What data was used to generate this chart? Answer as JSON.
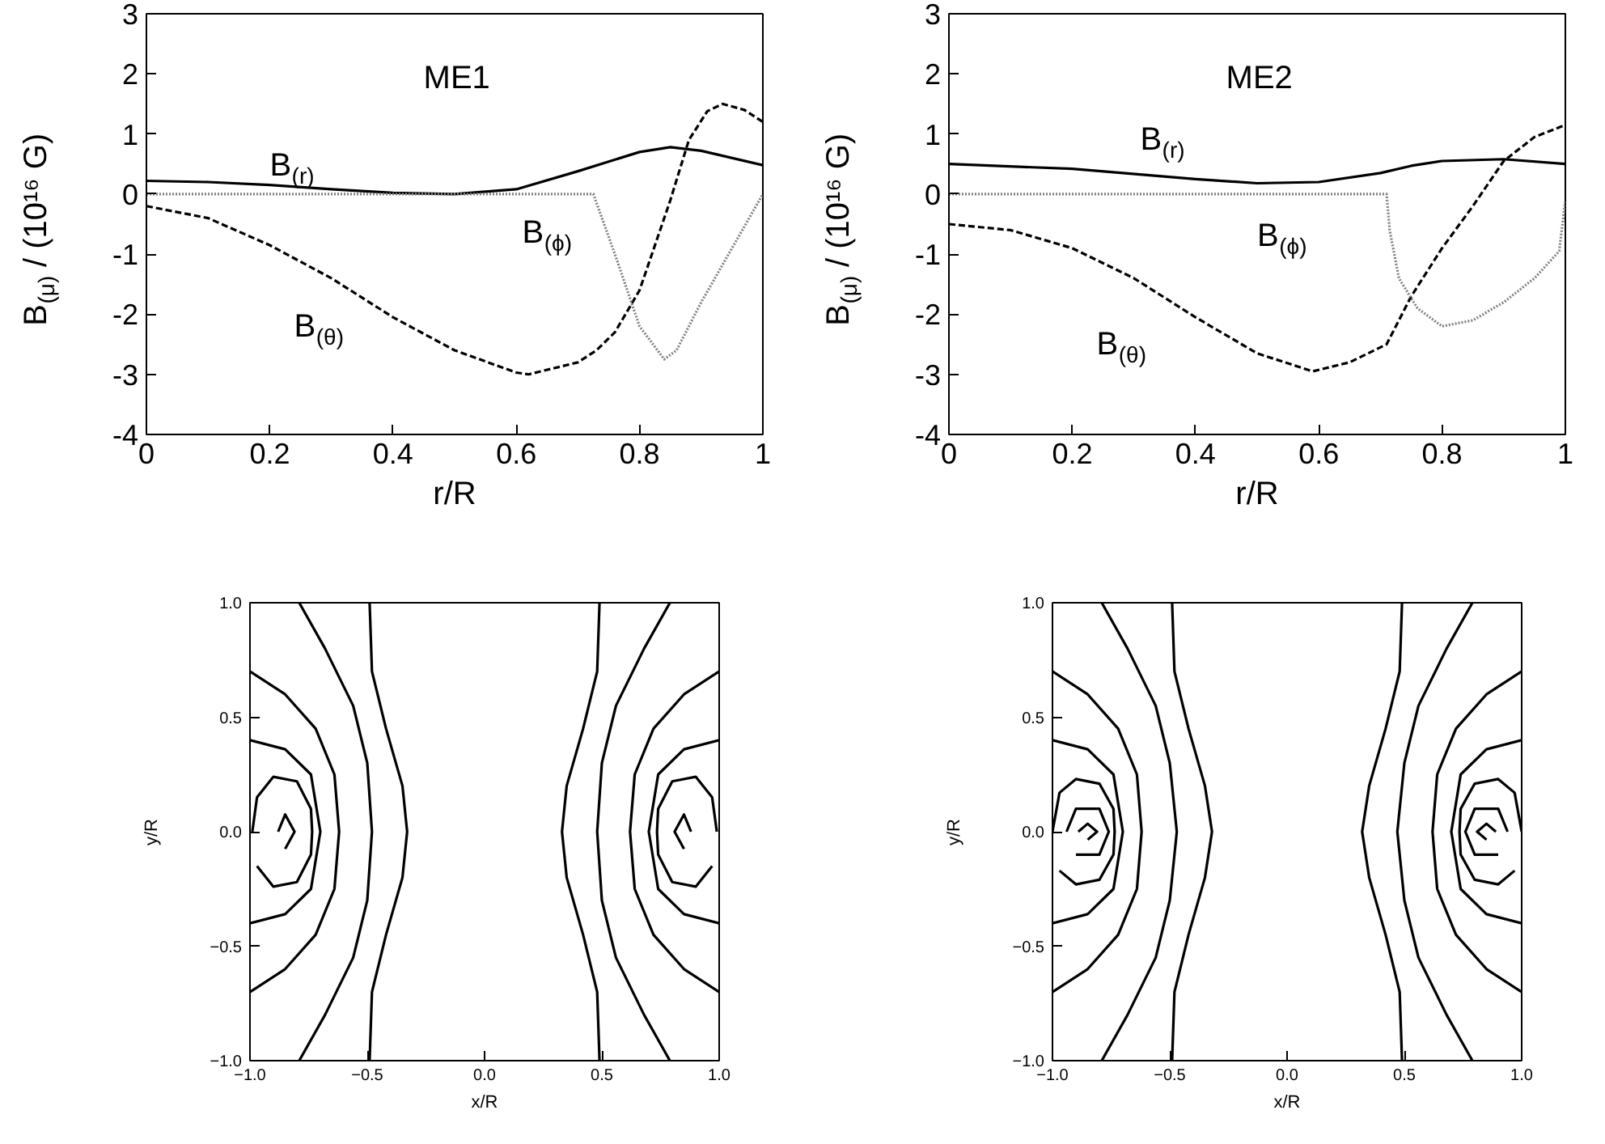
{
  "chart_data": [
    {
      "type": "line",
      "title": "ME1",
      "xlabel": "r/R",
      "ylabel": "B$_{(μ)}$ / (10¹⁶ G)",
      "xlim": [
        0,
        1
      ],
      "ylim": [
        -4,
        3
      ],
      "xticks": [
        0,
        0.2,
        0.4,
        0.6,
        0.8,
        1
      ],
      "yticks": [
        -4,
        -3,
        -2,
        -1,
        0,
        1,
        2,
        3
      ],
      "tick_labels": true,
      "series": [
        {
          "name": "B$_{(r)}$",
          "color": "#000000",
          "line_style": "solid",
          "x": [
            0,
            0.1,
            0.2,
            0.3,
            0.4,
            0.5,
            0.6,
            0.7,
            0.8,
            0.85,
            0.9,
            1
          ],
          "values": [
            0.22,
            0.2,
            0.15,
            0.08,
            0.02,
            0,
            0.08,
            0.38,
            0.7,
            0.78,
            0.72,
            0.48
          ]
        },
        {
          "name": "B$_{(θ)}$",
          "color": "#000000",
          "line_style": "dashed",
          "x": [
            0,
            0.1,
            0.2,
            0.3,
            0.4,
            0.5,
            0.6,
            0.62,
            0.7,
            0.73,
            0.76,
            0.8,
            0.85,
            0.88,
            0.91,
            0.935,
            0.97,
            1
          ],
          "values": [
            -0.2,
            -0.4,
            -0.85,
            -1.4,
            -2.05,
            -2.6,
            -2.97,
            -3,
            -2.8,
            -2.6,
            -2.3,
            -1.6,
            -0.1,
            0.9,
            1.38,
            1.5,
            1.4,
            1.2
          ]
        },
        {
          "name": "B$_{(ϕ)}$",
          "color": "#808080",
          "line_style": "dotted",
          "x": [
            0,
            0.725,
            0.76,
            0.8,
            0.84,
            0.86,
            0.9,
            0.95,
            1
          ],
          "values": [
            0,
            0,
            -1,
            -2.2,
            -2.75,
            -2.6,
            -1.8,
            -0.9,
            0
          ]
        }
      ]
    },
    {
      "type": "line",
      "title": "ME2",
      "xlabel": "r/R",
      "ylabel": "B$_{(μ)}$ / (10¹⁶ G)",
      "xlim": [
        0,
        1
      ],
      "ylim": [
        -4,
        3
      ],
      "xticks": [
        0,
        0.2,
        0.4,
        0.6,
        0.8,
        1
      ],
      "yticks": [
        -4,
        -3,
        -2,
        -1,
        0,
        1,
        2,
        3
      ],
      "tick_labels": true,
      "series": [
        {
          "name": "B$_{(r)}$",
          "color": "#000000",
          "line_style": "solid",
          "x": [
            0,
            0.2,
            0.4,
            0.5,
            0.6,
            0.7,
            0.75,
            0.8,
            0.9,
            1
          ],
          "values": [
            0.5,
            0.42,
            0.25,
            0.18,
            0.2,
            0.35,
            0.47,
            0.55,
            0.58,
            0.5
          ]
        },
        {
          "name": "B$_{(θ)}$",
          "color": "#000000",
          "line_style": "dashed",
          "x": [
            0,
            0.1,
            0.2,
            0.3,
            0.4,
            0.5,
            0.59,
            0.65,
            0.71,
            0.72,
            0.75,
            0.8,
            0.85,
            0.9,
            0.95,
            1
          ],
          "values": [
            -0.5,
            -0.6,
            -0.9,
            -1.4,
            -2.05,
            -2.65,
            -2.95,
            -2.8,
            -2.5,
            -2.3,
            -1.7,
            -0.9,
            -0.2,
            0.55,
            0.95,
            1.15
          ]
        },
        {
          "name": "B$_{(ϕ)}$",
          "color": "#808080",
          "line_style": "dotted",
          "x": [
            0,
            0.71,
            0.715,
            0.73,
            0.76,
            0.8,
            0.85,
            0.9,
            0.95,
            0.99,
            1
          ],
          "values": [
            0,
            0,
            -0.6,
            -1.4,
            -1.9,
            -2.2,
            -2.1,
            -1.8,
            -1.4,
            -0.95,
            -0.1
          ]
        }
      ]
    },
    {
      "type": "line",
      "xlabel": "x/R",
      "ylabel": "y/R",
      "xlim": [
        -1,
        1
      ],
      "ylim": [
        -1,
        1
      ],
      "xticks": [
        {
          "value": -1,
          "label": "−1.0"
        },
        {
          "value": -0.5,
          "label": "−0.5"
        },
        {
          "value": 0,
          "label": "0.0"
        },
        {
          "value": 0.5,
          "label": "0.5"
        },
        {
          "value": 1,
          "label": "1.0"
        }
      ],
      "yticks": [
        {
          "value": -1,
          "label": "−1.0"
        },
        {
          "value": -0.5,
          "label": "−0.5"
        },
        {
          "value": 0,
          "label": "0.0"
        },
        {
          "value": 0.5,
          "label": "0.5"
        },
        {
          "value": 1,
          "label": "1.0"
        }
      ],
      "line_style": "solid",
      "series": [
        {
          "color": "#000000",
          "x": [
            -0.49,
            -0.48,
            -0.42,
            -0.35,
            -0.33,
            -0.35,
            -0.42,
            -0.48,
            -0.49
          ],
          "values": [
            1,
            0.7,
            0.45,
            0.2,
            0,
            -0.2,
            -0.45,
            -0.7,
            -1
          ]
        },
        {
          "color": "#000000",
          "x": [
            -0.79,
            -0.68,
            -0.56,
            -0.5,
            -0.48,
            -0.5,
            -0.56,
            -0.68,
            -0.79
          ],
          "values": [
            1,
            0.8,
            0.55,
            0.3,
            0,
            -0.3,
            -0.55,
            -0.8,
            -1
          ]
        },
        {
          "color": "#000000",
          "x": [
            -1,
            -0.85,
            -0.72,
            -0.64,
            -0.62,
            -0.64,
            -0.72,
            -0.85,
            -1
          ],
          "values": [
            0.7,
            0.6,
            0.45,
            0.25,
            0,
            -0.25,
            -0.45,
            -0.6,
            -0.7
          ]
        },
        {
          "color": "#000000",
          "x": [
            -1,
            -0.85,
            -0.74,
            -0.7,
            -0.74,
            -0.85,
            -1
          ],
          "values": [
            0.4,
            0.36,
            0.25,
            0,
            -0.25,
            -0.36,
            -0.4
          ]
        },
        {
          "color": "#000000",
          "x": [
            -0.99,
            -0.97,
            -0.9,
            -0.8,
            -0.74,
            -0.735,
            -0.74,
            -0.8,
            -0.9,
            -0.97
          ],
          "values": [
            0,
            0.15,
            0.24,
            0.22,
            0.1,
            0,
            -0.1,
            -0.22,
            -0.24,
            -0.15
          ]
        },
        {
          "color": "#000000",
          "x": [
            -0.88,
            -0.85,
            -0.81,
            -0.85
          ],
          "values": [
            0,
            0.075,
            0,
            -0.075
          ]
        },
        {
          "color": "#000000",
          "x": [
            0.49,
            0.48,
            0.42,
            0.35,
            0.33,
            0.35,
            0.42,
            0.48,
            0.49
          ],
          "values": [
            1,
            0.7,
            0.45,
            0.2,
            0,
            -0.2,
            -0.45,
            -0.7,
            -1
          ]
        },
        {
          "color": "#000000",
          "x": [
            0.79,
            0.68,
            0.56,
            0.5,
            0.48,
            0.5,
            0.56,
            0.68,
            0.79
          ],
          "values": [
            1,
            0.8,
            0.55,
            0.3,
            0,
            -0.3,
            -0.55,
            -0.8,
            -1
          ]
        },
        {
          "color": "#000000",
          "x": [
            1,
            0.85,
            0.72,
            0.64,
            0.62,
            0.64,
            0.72,
            0.85,
            1
          ],
          "values": [
            0.7,
            0.6,
            0.45,
            0.25,
            0,
            -0.25,
            -0.45,
            -0.6,
            -0.7
          ]
        },
        {
          "color": "#000000",
          "x": [
            1,
            0.85,
            0.74,
            0.7,
            0.74,
            0.85,
            1
          ],
          "values": [
            0.4,
            0.36,
            0.25,
            0,
            -0.25,
            -0.36,
            -0.4
          ]
        },
        {
          "color": "#000000",
          "x": [
            0.99,
            0.97,
            0.9,
            0.8,
            0.74,
            0.735,
            0.74,
            0.8,
            0.9,
            0.97
          ],
          "values": [
            0,
            0.15,
            0.24,
            0.22,
            0.1,
            0,
            -0.1,
            -0.22,
            -0.24,
            -0.15
          ]
        },
        {
          "color": "#000000",
          "x": [
            0.88,
            0.85,
            0.81,
            0.85
          ],
          "values": [
            0,
            0.075,
            0,
            -0.075
          ]
        }
      ]
    },
    {
      "type": "line",
      "xlabel": "x/R",
      "ylabel": "y/R",
      "xlim": [
        -1,
        1
      ],
      "ylim": [
        -1,
        1
      ],
      "xticks": [
        {
          "value": -1,
          "label": "−1.0"
        },
        {
          "value": -0.5,
          "label": "−0.5"
        },
        {
          "value": 0,
          "label": "0.0"
        },
        {
          "value": 0.5,
          "label": "0.5"
        },
        {
          "value": 1,
          "label": "1.0"
        }
      ],
      "yticks": [
        {
          "value": -1,
          "label": "−1.0"
        },
        {
          "value": -0.5,
          "label": "−0.5"
        },
        {
          "value": 0,
          "label": "0.0"
        },
        {
          "value": 0.5,
          "label": "0.5"
        },
        {
          "value": 1,
          "label": "1.0"
        }
      ],
      "line_style": "solid",
      "series": [
        {
          "color": "#000000",
          "x": [
            -0.49,
            -0.48,
            -0.42,
            -0.35,
            -0.32,
            -0.35,
            -0.42,
            -0.48,
            -0.49
          ],
          "values": [
            1,
            0.7,
            0.45,
            0.2,
            0,
            -0.2,
            -0.45,
            -0.7,
            -1
          ]
        },
        {
          "color": "#000000",
          "x": [
            -0.79,
            -0.68,
            -0.56,
            -0.5,
            -0.47,
            -0.5,
            -0.56,
            -0.68,
            -0.79
          ],
          "values": [
            1,
            0.8,
            0.55,
            0.3,
            0,
            -0.3,
            -0.55,
            -0.8,
            -1
          ]
        },
        {
          "color": "#000000",
          "x": [
            -1,
            -0.85,
            -0.72,
            -0.64,
            -0.62,
            -0.64,
            -0.72,
            -0.85,
            -1
          ],
          "values": [
            0.7,
            0.6,
            0.45,
            0.25,
            0,
            -0.25,
            -0.45,
            -0.6,
            -0.7
          ]
        },
        {
          "color": "#000000",
          "x": [
            -1,
            -0.85,
            -0.74,
            -0.7,
            -0.74,
            -0.85,
            -1
          ],
          "values": [
            0.4,
            0.36,
            0.25,
            0,
            -0.25,
            -0.36,
            -0.4
          ]
        },
        {
          "color": "#000000",
          "x": [
            -1,
            -0.97,
            -0.9,
            -0.8,
            -0.74,
            -0.735,
            -0.74,
            -0.8,
            -0.9,
            -0.97
          ],
          "values": [
            0,
            0.17,
            0.23,
            0.21,
            0.1,
            0,
            -0.1,
            -0.21,
            -0.23,
            -0.17
          ]
        },
        {
          "color": "#000000",
          "x": [
            -0.94,
            -0.9,
            -0.8,
            -0.76,
            -0.8,
            -0.9
          ],
          "values": [
            0,
            0.1,
            0.1,
            0,
            -0.1,
            -0.1
          ]
        },
        {
          "color": "#000000",
          "x": [
            -0.89,
            -0.85,
            -0.81,
            -0.85
          ],
          "values": [
            0,
            0.035,
            0,
            -0.035
          ]
        },
        {
          "color": "#000000",
          "x": [
            0.49,
            0.48,
            0.42,
            0.35,
            0.32,
            0.35,
            0.42,
            0.48,
            0.49
          ],
          "values": [
            1,
            0.7,
            0.45,
            0.2,
            0,
            -0.2,
            -0.45,
            -0.7,
            -1
          ]
        },
        {
          "color": "#000000",
          "x": [
            0.79,
            0.68,
            0.56,
            0.5,
            0.47,
            0.5,
            0.56,
            0.68,
            0.79
          ],
          "values": [
            1,
            0.8,
            0.55,
            0.3,
            0,
            -0.3,
            -0.55,
            -0.8,
            -1
          ]
        },
        {
          "color": "#000000",
          "x": [
            1,
            0.85,
            0.72,
            0.64,
            0.62,
            0.64,
            0.72,
            0.85,
            1
          ],
          "values": [
            0.7,
            0.6,
            0.45,
            0.25,
            0,
            -0.25,
            -0.45,
            -0.6,
            -0.7
          ]
        },
        {
          "color": "#000000",
          "x": [
            1,
            0.85,
            0.74,
            0.7,
            0.74,
            0.85,
            1
          ],
          "values": [
            0.4,
            0.36,
            0.25,
            0,
            -0.25,
            -0.36,
            -0.4
          ]
        },
        {
          "color": "#000000",
          "x": [
            1,
            0.97,
            0.9,
            0.8,
            0.74,
            0.735,
            0.74,
            0.8,
            0.9,
            0.97
          ],
          "values": [
            0,
            0.17,
            0.23,
            0.21,
            0.1,
            0,
            -0.1,
            -0.21,
            -0.23,
            -0.17
          ]
        },
        {
          "color": "#000000",
          "x": [
            0.94,
            0.9,
            0.8,
            0.76,
            0.8,
            0.9
          ],
          "values": [
            0,
            0.1,
            0.1,
            0,
            -0.1,
            -0.1
          ]
        },
        {
          "color": "#000000",
          "x": [
            0.89,
            0.85,
            0.81,
            0.85
          ],
          "values": [
            0,
            0.035,
            0,
            -0.035
          ]
        }
      ]
    }
  ]
}
